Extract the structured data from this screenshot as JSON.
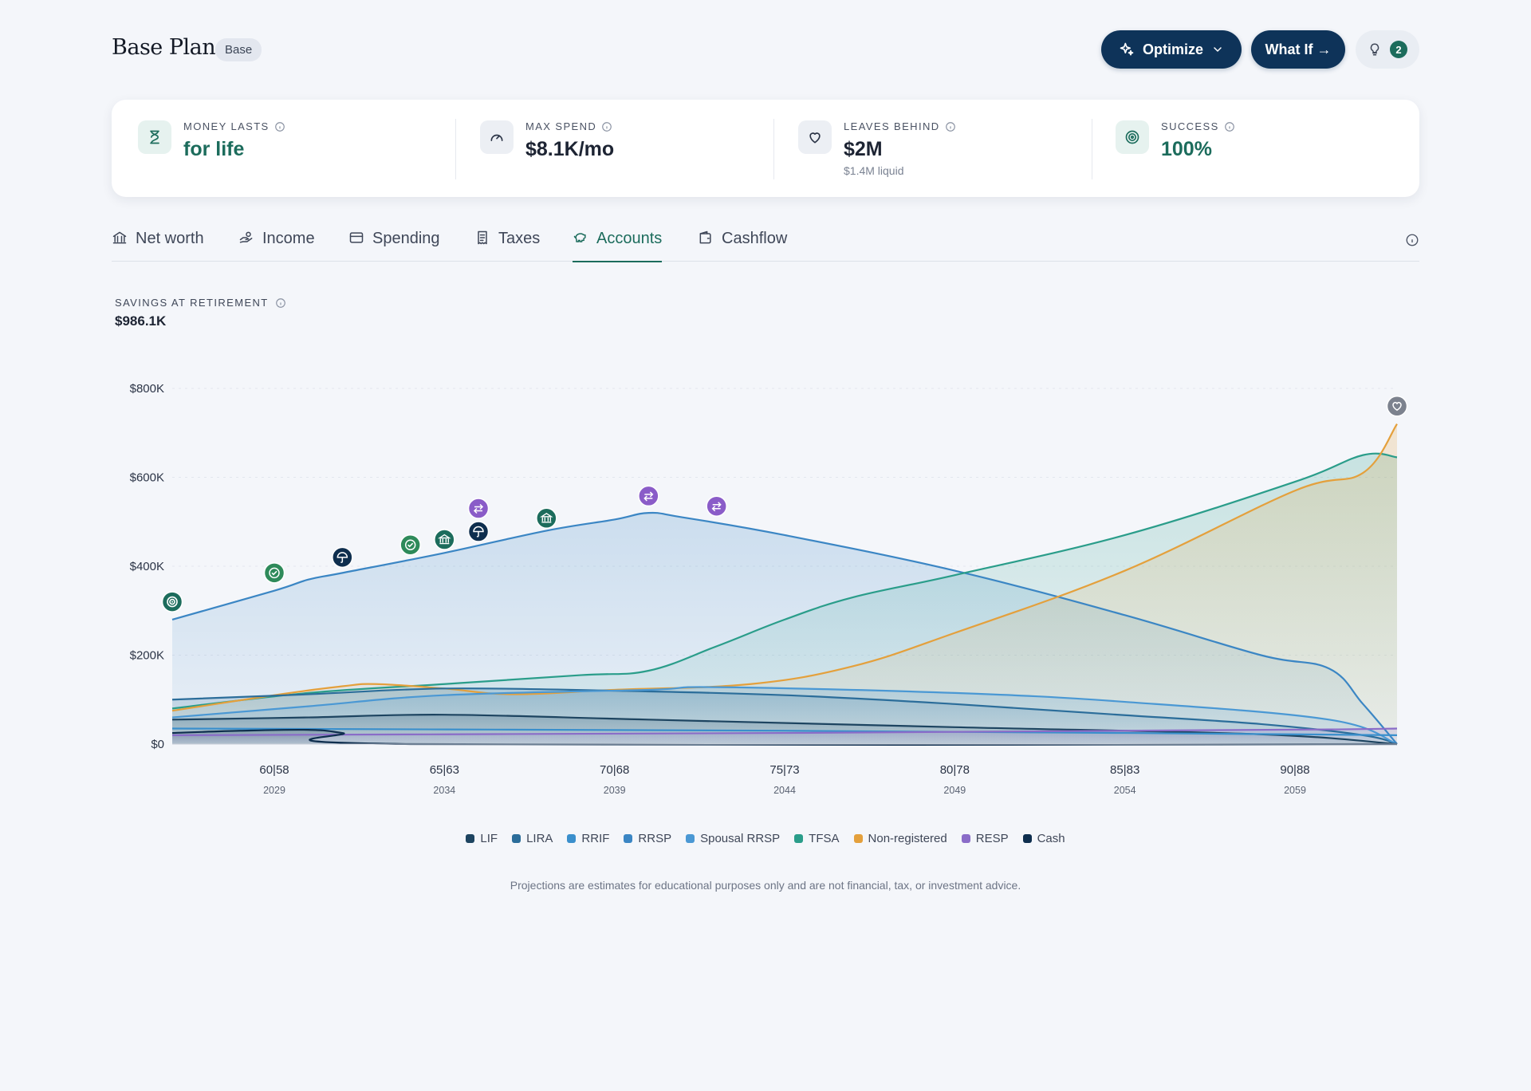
{
  "header": {
    "title": "Base Plan",
    "badge": "Base",
    "optimize_label": "Optimize",
    "whatif_label": "What If →",
    "ideas_count": "2"
  },
  "metrics": [
    {
      "label": "MONEY LASTS",
      "value": "for life",
      "sub": "",
      "icon": "hourglass-icon",
      "accent": "#1c6c5c"
    },
    {
      "label": "MAX SPEND",
      "value": "$8.1K/mo",
      "sub": "",
      "icon": "gauge-icon",
      "accent": "#141a26"
    },
    {
      "label": "LEAVES BEHIND",
      "value": "$2M",
      "sub": "$1.4M liquid",
      "icon": "heart-icon",
      "accent": "#141a26"
    },
    {
      "label": "SUCCESS",
      "value": "100%",
      "sub": "",
      "icon": "target-icon",
      "accent": "#1c6c5c"
    }
  ],
  "tabs": [
    {
      "label": "Net worth",
      "icon": "bank-icon"
    },
    {
      "label": "Income",
      "icon": "hand-coins-icon"
    },
    {
      "label": "Spending",
      "icon": "credit-card-icon"
    },
    {
      "label": "Taxes",
      "icon": "receipt-icon"
    },
    {
      "label": "Accounts",
      "icon": "piggy-bank-icon",
      "active": true
    },
    {
      "label": "Cashflow",
      "icon": "wallet-icon"
    }
  ],
  "section": {
    "label": "SAVINGS AT RETIREMENT",
    "value": "$986.1K"
  },
  "chart_data": {
    "type": "area",
    "x_ticks": [
      {
        "age": "60|58",
        "year": "2029",
        "x": 2029
      },
      {
        "age": "65|63",
        "year": "2034",
        "x": 2034
      },
      {
        "age": "70|68",
        "year": "2039",
        "x": 2039
      },
      {
        "age": "75|73",
        "year": "2044",
        "x": 2044
      },
      {
        "age": "80|78",
        "year": "2049",
        "x": 2049
      },
      {
        "age": "85|83",
        "year": "2054",
        "x": 2054
      },
      {
        "age": "90|88",
        "year": "2059",
        "x": 2059
      }
    ],
    "xlim": [
      2026,
      2062
    ],
    "ylim": [
      0,
      800000
    ],
    "y_ticks": [
      {
        "label": "$0",
        "v": 0
      },
      {
        "label": "$200K",
        "v": 200000
      },
      {
        "label": "$400K",
        "v": 400000
      },
      {
        "label": "$600K",
        "v": 600000
      },
      {
        "label": "$800K",
        "v": 800000
      }
    ],
    "series": [
      {
        "name": "RRSP",
        "color": "#3b86c4",
        "fill": true,
        "points": [
          [
            2026,
            280000
          ],
          [
            2029,
            345000
          ],
          [
            2030,
            370000
          ],
          [
            2031,
            385000
          ],
          [
            2034,
            430000
          ],
          [
            2037,
            480000
          ],
          [
            2039,
            505000
          ],
          [
            2040,
            520000
          ],
          [
            2041,
            510000
          ],
          [
            2044,
            470000
          ],
          [
            2049,
            390000
          ],
          [
            2054,
            290000
          ],
          [
            2058,
            200000
          ],
          [
            2060,
            170000
          ],
          [
            2061,
            90000
          ],
          [
            2062,
            0
          ]
        ]
      },
      {
        "name": "TFSA",
        "color": "#2a9d8a",
        "fill": true,
        "points": [
          [
            2026,
            80000
          ],
          [
            2030,
            115000
          ],
          [
            2034,
            135000
          ],
          [
            2038,
            155000
          ],
          [
            2040,
            165000
          ],
          [
            2042,
            220000
          ],
          [
            2044,
            280000
          ],
          [
            2046,
            330000
          ],
          [
            2049,
            380000
          ],
          [
            2054,
            470000
          ],
          [
            2059,
            590000
          ],
          [
            2061,
            650000
          ],
          [
            2062,
            645000
          ]
        ]
      },
      {
        "name": "Non-registered",
        "color": "#e4a03c",
        "fill": true,
        "points": [
          [
            2026,
            75000
          ],
          [
            2029,
            110000
          ],
          [
            2031,
            130000
          ],
          [
            2032,
            135000
          ],
          [
            2034,
            125000
          ],
          [
            2036,
            112000
          ],
          [
            2039,
            122000
          ],
          [
            2043,
            135000
          ],
          [
            2046,
            175000
          ],
          [
            2049,
            250000
          ],
          [
            2054,
            390000
          ],
          [
            2059,
            570000
          ],
          [
            2061,
            610000
          ],
          [
            2062,
            720000
          ]
        ]
      },
      {
        "name": "LIRA",
        "color": "#2b6d9a",
        "fill": true,
        "points": [
          [
            2026,
            100000
          ],
          [
            2030,
            112000
          ],
          [
            2034,
            125000
          ],
          [
            2039,
            120000
          ],
          [
            2044,
            110000
          ],
          [
            2049,
            90000
          ],
          [
            2054,
            65000
          ],
          [
            2058,
            45000
          ],
          [
            2061,
            20000
          ],
          [
            2062,
            0
          ]
        ]
      },
      {
        "name": "Spousal RRSP",
        "color": "#4a98d4",
        "fill": true,
        "points": [
          [
            2026,
            60000
          ],
          [
            2030,
            85000
          ],
          [
            2034,
            110000
          ],
          [
            2040,
            122000
          ],
          [
            2042,
            128000
          ],
          [
            2049,
            115000
          ],
          [
            2054,
            95000
          ],
          [
            2060,
            55000
          ],
          [
            2062,
            0
          ]
        ]
      },
      {
        "name": "LIF",
        "color": "#1d4460",
        "fill": true,
        "points": [
          [
            2026,
            55000
          ],
          [
            2030,
            60000
          ],
          [
            2034,
            66000
          ],
          [
            2040,
            55000
          ],
          [
            2049,
            38000
          ],
          [
            2058,
            22000
          ],
          [
            2062,
            0
          ]
        ]
      },
      {
        "name": "RRIF",
        "color": "#3a8fcc",
        "fill": false,
        "points": [
          [
            2026,
            35000
          ],
          [
            2034,
            33000
          ],
          [
            2044,
            30000
          ],
          [
            2054,
            25000
          ],
          [
            2062,
            20000
          ]
        ]
      },
      {
        "name": "RESP",
        "color": "#8a6cc8",
        "fill": true,
        "points": [
          [
            2026,
            20000
          ],
          [
            2034,
            22000
          ],
          [
            2044,
            25000
          ],
          [
            2054,
            30000
          ],
          [
            2060,
            33000
          ],
          [
            2062,
            35000
          ]
        ]
      },
      {
        "name": "Cash",
        "color": "#0e2e4e",
        "fill": true,
        "points": [
          [
            2026,
            25000
          ],
          [
            2028,
            30000
          ],
          [
            2030,
            32000
          ],
          [
            2031,
            25000
          ],
          [
            2033,
            0
          ],
          [
            2062,
            0
          ]
        ]
      }
    ],
    "markers": [
      {
        "x": 2026,
        "y": 320000,
        "icon": "target-icon",
        "color": "#1c6c5c"
      },
      {
        "x": 2029,
        "y": 385000,
        "icon": "check-icon",
        "color": "#2e8a5a"
      },
      {
        "x": 2031,
        "y": 420000,
        "icon": "umbrella-icon",
        "color": "#0e2e4e"
      },
      {
        "x": 2033,
        "y": 448000,
        "icon": "check-icon",
        "color": "#2e8a5a"
      },
      {
        "x": 2034,
        "y": 460000,
        "icon": "bank-icon",
        "color": "#1c6c5c"
      },
      {
        "x": 2035,
        "y": 478000,
        "icon": "umbrella-icon",
        "color": "#0e2e4e"
      },
      {
        "x": 2035,
        "y": 530000,
        "icon": "transfer-icon",
        "color": "#8a5cc8"
      },
      {
        "x": 2037,
        "y": 508000,
        "icon": "bank-icon",
        "color": "#1c6c5c"
      },
      {
        "x": 2040,
        "y": 558000,
        "icon": "transfer-icon",
        "color": "#8a5cc8"
      },
      {
        "x": 2042,
        "y": 535000,
        "icon": "transfer-icon",
        "color": "#8a5cc8"
      },
      {
        "x": 2062,
        "y": 760000,
        "icon": "heart-icon",
        "color": "#7c828e"
      }
    ],
    "legend": [
      {
        "name": "LIF",
        "color": "#1d4460"
      },
      {
        "name": "LIRA",
        "color": "#2b6d9a"
      },
      {
        "name": "RRIF",
        "color": "#3a8fcc"
      },
      {
        "name": "RRSP",
        "color": "#3b86c4"
      },
      {
        "name": "Spousal RRSP",
        "color": "#4a98d4"
      },
      {
        "name": "TFSA",
        "color": "#2a9d8a"
      },
      {
        "name": "Non-registered",
        "color": "#e4a03c"
      },
      {
        "name": "RESP",
        "color": "#8a6cc8"
      },
      {
        "name": "Cash",
        "color": "#0e2e4e"
      }
    ],
    "legend_position": "bottom-center"
  },
  "disclaimer": "Projections are estimates for educational purposes only and are not financial, tax, or investment advice."
}
